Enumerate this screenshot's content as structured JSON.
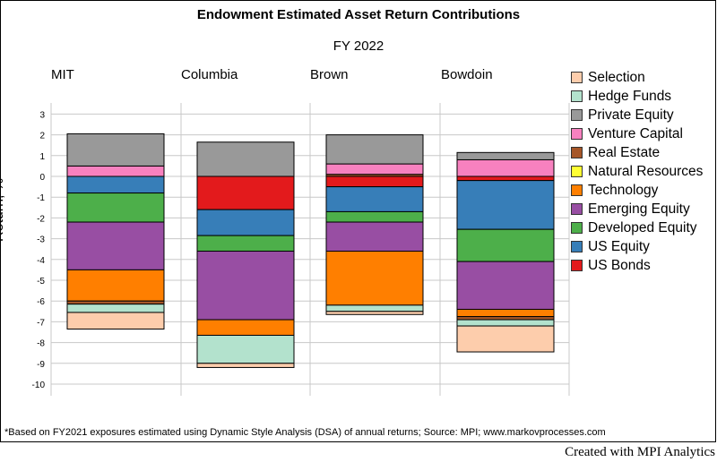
{
  "title": "Endowment Estimated Asset Return Contributions",
  "subtitle": "FY 2022",
  "footnote": "*Based on FY2021 exposures estimated using Dynamic Style Analysis (DSA) of annual returns; Source: MPI; www.markovprocesses.com",
  "credit": "Created with MPI Analytics",
  "chart_data": {
    "type": "bar",
    "stacked": true,
    "ylabel": "Return, %",
    "ylim": [
      -10,
      3
    ],
    "yticks": [
      "3",
      "2",
      "1",
      "0",
      "-1",
      "-2",
      "-3",
      "-4",
      "-5",
      "-6",
      "-7",
      "-8",
      "-9",
      "-10"
    ],
    "grid": true,
    "legend_position": "right",
    "categories": [
      "MIT",
      "Columbia",
      "Brown",
      "Bowdoin"
    ],
    "series": [
      {
        "name": "US Bonds",
        "color": "#e31a1c",
        "values": [
          0,
          -1.6,
          -0.5,
          -0.2
        ]
      },
      {
        "name": "US Equity",
        "color": "#377eb8",
        "values": [
          -0.8,
          -1.25,
          -1.2,
          -2.35
        ]
      },
      {
        "name": "Developed Equity",
        "color": "#4daf4a",
        "values": [
          -1.4,
          -0.75,
          -0.5,
          -1.55
        ]
      },
      {
        "name": "Emerging Equity",
        "color": "#984ea3",
        "values": [
          -2.3,
          -3.3,
          -1.4,
          -2.3
        ]
      },
      {
        "name": "Technology",
        "color": "#ff7f00",
        "values": [
          -1.5,
          -0.75,
          -2.6,
          -0.35
        ]
      },
      {
        "name": "Natural Resources",
        "color": "#ffff33",
        "values": [
          0,
          0,
          0,
          0
        ]
      },
      {
        "name": "Real Estate",
        "color": "#a65628",
        "values": [
          -0.15,
          0,
          0.1,
          -0.15
        ]
      },
      {
        "name": "Venture Capital",
        "color": "#f781bf",
        "values": [
          0.5,
          0,
          0.5,
          0.8
        ]
      },
      {
        "name": "Private Equity",
        "color": "#999999",
        "values": [
          1.55,
          1.65,
          1.4,
          0.35
        ]
      },
      {
        "name": "Hedge Funds",
        "color": "#b3e2cd",
        "values": [
          -0.4,
          -1.35,
          -0.3,
          -0.3
        ]
      },
      {
        "name": "Selection",
        "color": "#fdcdac",
        "values": [
          -0.8,
          -0.2,
          -0.15,
          -1.25
        ]
      }
    ],
    "legend_order": [
      "Selection",
      "Hedge Funds",
      "Private Equity",
      "Venture Capital",
      "Real Estate",
      "Natural Resources",
      "Technology",
      "Emerging Equity",
      "Developed Equity",
      "US Equity",
      "US Bonds"
    ]
  }
}
